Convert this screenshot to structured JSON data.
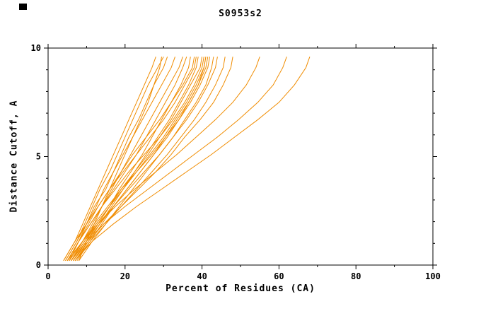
{
  "chart_data": {
    "type": "line",
    "title": "S0953s2",
    "xlabel": "Percent of Residues (CA)",
    "ylabel": "Distance Cutoff, A",
    "xlim": [
      0,
      100
    ],
    "ylim": [
      0,
      10
    ],
    "xticks": [
      0,
      20,
      40,
      60,
      80,
      100
    ],
    "yticks": [
      0,
      5,
      10
    ],
    "x_minor_step": 10,
    "y_minor_step": 1,
    "grid": false,
    "legend": "none",
    "line_color": "#F08C00",
    "frame_color": "#000000",
    "background": "#FFFFFF",
    "series": [
      [
        [
          4,
          0.2
        ],
        [
          7,
          1.1
        ],
        [
          9,
          1.9
        ],
        [
          11,
          2.7
        ],
        [
          13,
          3.5
        ],
        [
          15,
          4.3
        ],
        [
          17,
          5.1
        ],
        [
          19,
          5.9
        ],
        [
          21,
          6.7
        ],
        [
          23,
          7.5
        ],
        [
          25,
          8.3
        ],
        [
          27,
          9.1
        ],
        [
          28,
          9.6
        ]
      ],
      [
        [
          4.5,
          0.2
        ],
        [
          7.5,
          1.1
        ],
        [
          9.5,
          1.9
        ],
        [
          11.5,
          2.7
        ],
        [
          13.5,
          3.5
        ],
        [
          16,
          4.3
        ],
        [
          18,
          5.1
        ],
        [
          20,
          5.9
        ],
        [
          22,
          6.7
        ],
        [
          24,
          7.5
        ],
        [
          26,
          8.3
        ],
        [
          28.5,
          9.1
        ],
        [
          30,
          9.6
        ]
      ],
      [
        [
          8,
          0.2
        ],
        [
          10,
          1.1
        ],
        [
          12,
          1.9
        ],
        [
          14,
          2.7
        ],
        [
          16,
          3.5
        ],
        [
          18,
          4.3
        ],
        [
          20,
          5.1
        ],
        [
          22,
          5.9
        ],
        [
          24,
          6.7
        ],
        [
          26,
          7.5
        ],
        [
          27.5,
          8.3
        ],
        [
          29,
          9.1
        ],
        [
          29.5,
          9.6
        ]
      ],
      [
        [
          5,
          0.2
        ],
        [
          8,
          1.1
        ],
        [
          10,
          1.9
        ],
        [
          12.5,
          2.7
        ],
        [
          14.5,
          3.5
        ],
        [
          17,
          4.3
        ],
        [
          19,
          5.1
        ],
        [
          21,
          5.9
        ],
        [
          23.5,
          6.7
        ],
        [
          25.5,
          7.5
        ],
        [
          27.5,
          8.3
        ],
        [
          30,
          9.1
        ],
        [
          31,
          9.6
        ]
      ],
      [
        [
          4,
          0.2
        ],
        [
          7,
          1.1
        ],
        [
          10,
          1.9
        ],
        [
          12,
          2.7
        ],
        [
          15,
          3.5
        ],
        [
          17,
          4.3
        ],
        [
          19.5,
          5.1
        ],
        [
          22,
          5.9
        ],
        [
          24.5,
          6.7
        ],
        [
          27,
          7.5
        ],
        [
          29.5,
          8.3
        ],
        [
          32,
          9.1
        ],
        [
          33,
          9.6
        ]
      ],
      [
        [
          6,
          0.2
        ],
        [
          9,
          1.1
        ],
        [
          11.5,
          1.9
        ],
        [
          14,
          2.7
        ],
        [
          16.5,
          3.5
        ],
        [
          19,
          4.3
        ],
        [
          21.5,
          5.1
        ],
        [
          24,
          5.9
        ],
        [
          26.5,
          6.7
        ],
        [
          29,
          7.5
        ],
        [
          31.5,
          8.3
        ],
        [
          34,
          9.1
        ],
        [
          35,
          9.6
        ]
      ],
      [
        [
          5,
          0.2
        ],
        [
          8,
          1.1
        ],
        [
          11,
          1.9
        ],
        [
          14,
          2.7
        ],
        [
          17,
          3.5
        ],
        [
          20,
          4.3
        ],
        [
          23,
          5.1
        ],
        [
          25.5,
          5.9
        ],
        [
          28,
          6.7
        ],
        [
          30.5,
          7.5
        ],
        [
          33,
          8.3
        ],
        [
          35,
          9.1
        ],
        [
          36,
          9.6
        ]
      ],
      [
        [
          6.5,
          0.2
        ],
        [
          10,
          1.1
        ],
        [
          13,
          1.9
        ],
        [
          16,
          2.7
        ],
        [
          18.5,
          3.5
        ],
        [
          21.5,
          4.3
        ],
        [
          24.5,
          5.1
        ],
        [
          27,
          5.9
        ],
        [
          29.5,
          6.7
        ],
        [
          32,
          7.5
        ],
        [
          34.5,
          8.3
        ],
        [
          36.5,
          9.1
        ],
        [
          37,
          9.6
        ]
      ],
      [
        [
          5.5,
          0.2
        ],
        [
          8,
          1.1
        ],
        [
          10.5,
          1.9
        ],
        [
          13,
          2.7
        ],
        [
          16,
          3.5
        ],
        [
          19,
          4.3
        ],
        [
          22,
          5.1
        ],
        [
          25.5,
          5.9
        ],
        [
          29,
          6.7
        ],
        [
          32,
          7.5
        ],
        [
          35,
          8.3
        ],
        [
          37.5,
          9.1
        ],
        [
          38,
          9.6
        ]
      ],
      [
        [
          4.5,
          0.2
        ],
        [
          7.5,
          1.1
        ],
        [
          10,
          1.9
        ],
        [
          13,
          2.7
        ],
        [
          16,
          3.5
        ],
        [
          19.5,
          4.3
        ],
        [
          23,
          5.1
        ],
        [
          26.5,
          5.9
        ],
        [
          30,
          6.7
        ],
        [
          33,
          7.5
        ],
        [
          35.5,
          8.3
        ],
        [
          38,
          9.1
        ],
        [
          38.5,
          9.6
        ]
      ],
      [
        [
          7,
          0.2
        ],
        [
          10.5,
          1.1
        ],
        [
          13.5,
          1.9
        ],
        [
          16.5,
          2.7
        ],
        [
          19.5,
          3.5
        ],
        [
          22.5,
          4.3
        ],
        [
          25.5,
          5.1
        ],
        [
          28.5,
          5.9
        ],
        [
          31.5,
          6.7
        ],
        [
          34,
          7.5
        ],
        [
          36.5,
          8.3
        ],
        [
          38.5,
          9.1
        ],
        [
          39,
          9.6
        ]
      ],
      [
        [
          6,
          0.2
        ],
        [
          9.5,
          1.1
        ],
        [
          12.5,
          1.9
        ],
        [
          16,
          2.7
        ],
        [
          19,
          3.5
        ],
        [
          22.5,
          4.3
        ],
        [
          26,
          5.1
        ],
        [
          29,
          5.9
        ],
        [
          32,
          6.7
        ],
        [
          34.5,
          7.5
        ],
        [
          37,
          8.3
        ],
        [
          39.5,
          9.1
        ],
        [
          40,
          9.6
        ]
      ],
      [
        [
          5,
          0.2
        ],
        [
          8,
          1.1
        ],
        [
          11,
          1.9
        ],
        [
          14,
          2.7
        ],
        [
          17.5,
          3.5
        ],
        [
          21,
          4.3
        ],
        [
          25,
          5.1
        ],
        [
          29,
          5.9
        ],
        [
          32.5,
          6.7
        ],
        [
          35.5,
          7.5
        ],
        [
          38,
          8.3
        ],
        [
          40,
          9.1
        ],
        [
          40.5,
          9.6
        ]
      ],
      [
        [
          7.5,
          0.2
        ],
        [
          11,
          1.1
        ],
        [
          14,
          1.9
        ],
        [
          17,
          2.7
        ],
        [
          20.5,
          3.5
        ],
        [
          24,
          4.3
        ],
        [
          27.5,
          5.1
        ],
        [
          30.5,
          5.9
        ],
        [
          33.5,
          6.7
        ],
        [
          36.5,
          7.5
        ],
        [
          39,
          8.3
        ],
        [
          40.5,
          9.1
        ],
        [
          41,
          9.6
        ]
      ],
      [
        [
          5.5,
          0.2
        ],
        [
          9,
          1.1
        ],
        [
          12.5,
          1.9
        ],
        [
          16,
          2.7
        ],
        [
          19.5,
          3.5
        ],
        [
          23,
          4.3
        ],
        [
          26.5,
          5.1
        ],
        [
          30,
          5.9
        ],
        [
          33,
          6.7
        ],
        [
          36,
          7.5
        ],
        [
          38.5,
          8.3
        ],
        [
          40.5,
          9.1
        ],
        [
          41,
          9.6
        ]
      ],
      [
        [
          6.5,
          0.2
        ],
        [
          10,
          1.1
        ],
        [
          13.5,
          1.9
        ],
        [
          17,
          2.7
        ],
        [
          20.5,
          3.5
        ],
        [
          24,
          4.3
        ],
        [
          27.5,
          5.1
        ],
        [
          31,
          5.9
        ],
        [
          34,
          6.7
        ],
        [
          36.5,
          7.5
        ],
        [
          39,
          8.3
        ],
        [
          41,
          9.1
        ],
        [
          41.5,
          9.6
        ]
      ],
      [
        [
          5.5,
          0.2
        ],
        [
          9,
          1.1
        ],
        [
          12,
          1.9
        ],
        [
          15.5,
          2.7
        ],
        [
          19,
          3.5
        ],
        [
          23,
          4.3
        ],
        [
          27,
          5.1
        ],
        [
          30.5,
          5.9
        ],
        [
          34,
          6.7
        ],
        [
          37,
          7.5
        ],
        [
          39.5,
          8.3
        ],
        [
          41.5,
          9.1
        ],
        [
          42,
          9.6
        ]
      ],
      [
        [
          8,
          0.2
        ],
        [
          11.5,
          1.1
        ],
        [
          15,
          1.9
        ],
        [
          18.5,
          2.7
        ],
        [
          22,
          3.5
        ],
        [
          25.5,
          4.3
        ],
        [
          29,
          5.1
        ],
        [
          32.5,
          5.9
        ],
        [
          35.5,
          6.7
        ],
        [
          38.5,
          7.5
        ],
        [
          41,
          8.3
        ],
        [
          42.5,
          9.1
        ],
        [
          43,
          9.6
        ]
      ],
      [
        [
          6,
          0.2
        ],
        [
          9.5,
          1.1
        ],
        [
          13,
          1.9
        ],
        [
          17,
          2.7
        ],
        [
          21,
          3.5
        ],
        [
          25,
          4.3
        ],
        [
          29,
          5.1
        ],
        [
          32.5,
          5.9
        ],
        [
          36,
          6.7
        ],
        [
          39,
          7.5
        ],
        [
          41.5,
          8.3
        ],
        [
          43.5,
          9.1
        ],
        [
          44,
          9.6
        ]
      ],
      [
        [
          7,
          0.2
        ],
        [
          11,
          1.1
        ],
        [
          15,
          1.9
        ],
        [
          19,
          2.7
        ],
        [
          23,
          3.5
        ],
        [
          27,
          4.3
        ],
        [
          31,
          5.1
        ],
        [
          34.5,
          5.9
        ],
        [
          38,
          6.7
        ],
        [
          41,
          7.5
        ],
        [
          43.5,
          8.3
        ],
        [
          45.5,
          9.1
        ],
        [
          46,
          9.6
        ]
      ],
      [
        [
          6.5,
          0.2
        ],
        [
          10.5,
          1.1
        ],
        [
          14.5,
          1.9
        ],
        [
          19,
          2.7
        ],
        [
          23.5,
          3.5
        ],
        [
          28,
          4.3
        ],
        [
          32,
          5.1
        ],
        [
          35.5,
          5.9
        ],
        [
          39.5,
          6.7
        ],
        [
          43,
          7.5
        ],
        [
          45.5,
          8.3
        ],
        [
          47.5,
          9.1
        ],
        [
          48,
          9.6
        ]
      ],
      [
        [
          5,
          0.2
        ],
        [
          9,
          1.1
        ],
        [
          13,
          1.9
        ],
        [
          17.5,
          2.7
        ],
        [
          22.5,
          3.5
        ],
        [
          28,
          4.3
        ],
        [
          33.5,
          5.1
        ],
        [
          38.5,
          5.9
        ],
        [
          43.5,
          6.7
        ],
        [
          48,
          7.5
        ],
        [
          51.5,
          8.3
        ],
        [
          54,
          9.1
        ],
        [
          55,
          9.6
        ]
      ],
      [
        [
          6,
          0.2
        ],
        [
          10,
          1.1
        ],
        [
          14.5,
          1.9
        ],
        [
          20,
          2.7
        ],
        [
          26,
          3.5
        ],
        [
          32,
          4.3
        ],
        [
          38,
          5.1
        ],
        [
          44,
          5.9
        ],
        [
          49.5,
          6.7
        ],
        [
          54.5,
          7.5
        ],
        [
          58.5,
          8.3
        ],
        [
          61,
          9.1
        ],
        [
          62,
          9.6
        ]
      ],
      [
        [
          7,
          0.2
        ],
        [
          11.5,
          1.1
        ],
        [
          17,
          1.9
        ],
        [
          23,
          2.7
        ],
        [
          29.5,
          3.5
        ],
        [
          36,
          4.3
        ],
        [
          42.5,
          5.1
        ],
        [
          48.5,
          5.9
        ],
        [
          54.5,
          6.7
        ],
        [
          60,
          7.5
        ],
        [
          64,
          8.3
        ],
        [
          67,
          9.1
        ],
        [
          68,
          9.6
        ]
      ]
    ]
  }
}
